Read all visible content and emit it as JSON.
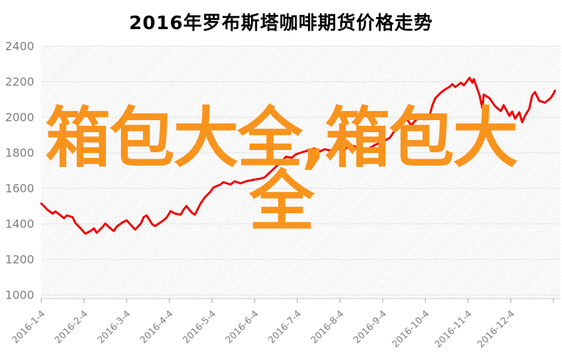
{
  "page": {
    "background": "#ffffff"
  },
  "chart": {
    "title": "2016年罗布斯塔咖啡期货价格走势",
    "title_color": "#000000",
    "watermark": {
      "line1": "箱包大全,箱包大",
      "line2": "全",
      "color": "#F8941D"
    },
    "line_color": "#EE0000",
    "line_width": 3,
    "grid_color": "#E2E2E2",
    "hatch_color": "#EBEBEB",
    "axis_label_color": "#7E7E7E",
    "axis_line_color": "#C9C9C9",
    "tick_color": "#9E9E9E"
  },
  "chart_data": {
    "type": "line",
    "title": "2016年罗布斯塔咖啡期货价格走势",
    "series_name": "罗布斯塔咖啡期货价格",
    "legend": false,
    "grid": "horizontal",
    "ylim": [
      1000,
      2400
    ],
    "y_ticks": [
      2400,
      2200,
      2000,
      1800,
      1600,
      1400,
      1200,
      1000
    ],
    "x_tick_labels": [
      "2016-1-4",
      "2016-2-4",
      "2016-3-4",
      "2016-4-4",
      "2016-5-4",
      "2016-6-4",
      "2016-7-4",
      "2016-8-4",
      "2016-9-4",
      "2016-10-4",
      "2016-11-4",
      "2016-12-4"
    ],
    "x_start_date": "2016-01-04",
    "points": [
      [
        "2016-01-04",
        1515
      ],
      [
        "2016-01-06",
        1500
      ],
      [
        "2016-01-08",
        1482
      ],
      [
        "2016-01-12",
        1458
      ],
      [
        "2016-01-14",
        1470
      ],
      [
        "2016-01-18",
        1445
      ],
      [
        "2016-01-20",
        1432
      ],
      [
        "2016-01-22",
        1448
      ],
      [
        "2016-01-26",
        1438
      ],
      [
        "2016-01-28",
        1405
      ],
      [
        "2016-02-01",
        1372
      ],
      [
        "2016-02-04",
        1345
      ],
      [
        "2016-02-08",
        1362
      ],
      [
        "2016-02-10",
        1375
      ],
      [
        "2016-02-12",
        1350
      ],
      [
        "2016-02-16",
        1382
      ],
      [
        "2016-02-18",
        1402
      ],
      [
        "2016-02-22",
        1372
      ],
      [
        "2016-02-24",
        1360
      ],
      [
        "2016-02-26",
        1385
      ],
      [
        "2016-03-01",
        1408
      ],
      [
        "2016-03-04",
        1420
      ],
      [
        "2016-03-08",
        1385
      ],
      [
        "2016-03-10",
        1368
      ],
      [
        "2016-03-14",
        1402
      ],
      [
        "2016-03-16",
        1438
      ],
      [
        "2016-03-18",
        1448
      ],
      [
        "2016-03-22",
        1398
      ],
      [
        "2016-03-24",
        1388
      ],
      [
        "2016-03-29",
        1415
      ],
      [
        "2016-04-01",
        1435
      ],
      [
        "2016-04-04",
        1472
      ],
      [
        "2016-04-07",
        1458
      ],
      [
        "2016-04-11",
        1452
      ],
      [
        "2016-04-13",
        1480
      ],
      [
        "2016-04-15",
        1500
      ],
      [
        "2016-04-19",
        1462
      ],
      [
        "2016-04-21",
        1452
      ],
      [
        "2016-04-25",
        1515
      ],
      [
        "2016-04-28",
        1550
      ],
      [
        "2016-05-02",
        1582
      ],
      [
        "2016-05-04",
        1605
      ],
      [
        "2016-05-09",
        1622
      ],
      [
        "2016-05-11",
        1635
      ],
      [
        "2016-05-16",
        1622
      ],
      [
        "2016-05-19",
        1640
      ],
      [
        "2016-05-23",
        1628
      ],
      [
        "2016-05-27",
        1640
      ],
      [
        "2016-06-01",
        1648
      ],
      [
        "2016-06-06",
        1655
      ],
      [
        "2016-06-09",
        1662
      ],
      [
        "2016-06-13",
        1692
      ],
      [
        "2016-06-16",
        1715
      ],
      [
        "2016-06-21",
        1752
      ],
      [
        "2016-06-24",
        1778
      ],
      [
        "2016-06-28",
        1772
      ],
      [
        "2016-07-01",
        1792
      ],
      [
        "2016-07-06",
        1805
      ],
      [
        "2016-07-11",
        1818
      ],
      [
        "2016-07-14",
        1825
      ],
      [
        "2016-07-18",
        1808
      ],
      [
        "2016-07-21",
        1820
      ],
      [
        "2016-07-26",
        1812
      ],
      [
        "2016-07-29",
        1825
      ],
      [
        "2016-08-03",
        1820
      ],
      [
        "2016-08-08",
        1833
      ],
      [
        "2016-08-11",
        1838
      ],
      [
        "2016-08-15",
        1815
      ],
      [
        "2016-08-18",
        1812
      ],
      [
        "2016-08-23",
        1833
      ],
      [
        "2016-08-26",
        1846
      ],
      [
        "2016-08-31",
        1862
      ],
      [
        "2016-09-05",
        1885
      ],
      [
        "2016-09-08",
        1920
      ],
      [
        "2016-09-12",
        1945
      ],
      [
        "2016-09-14",
        1978
      ],
      [
        "2016-09-16",
        2000
      ],
      [
        "2016-09-20",
        1955
      ],
      [
        "2016-09-23",
        1982
      ],
      [
        "2016-09-26",
        2002
      ],
      [
        "2016-09-29",
        1988
      ],
      [
        "2016-10-03",
        2012
      ],
      [
        "2016-10-05",
        2070
      ],
      [
        "2016-10-07",
        2108
      ],
      [
        "2016-10-11",
        2140
      ],
      [
        "2016-10-13",
        2152
      ],
      [
        "2016-10-17",
        2172
      ],
      [
        "2016-10-19",
        2186
      ],
      [
        "2016-10-21",
        2170
      ],
      [
        "2016-10-25",
        2195
      ],
      [
        "2016-10-27",
        2180
      ],
      [
        "2016-10-31",
        2222
      ],
      [
        "2016-11-02",
        2195
      ],
      [
        "2016-11-03",
        2215
      ],
      [
        "2016-11-07",
        2125
      ],
      [
        "2016-11-09",
        2052
      ],
      [
        "2016-11-10",
        2128
      ],
      [
        "2016-11-14",
        2108
      ],
      [
        "2016-11-16",
        2085
      ],
      [
        "2016-11-18",
        2062
      ],
      [
        "2016-11-22",
        2035
      ],
      [
        "2016-11-24",
        2068
      ],
      [
        "2016-11-28",
        2008
      ],
      [
        "2016-11-30",
        2032
      ],
      [
        "2016-12-02",
        1992
      ],
      [
        "2016-12-05",
        2028
      ],
      [
        "2016-12-07",
        1972
      ],
      [
        "2016-12-09",
        2008
      ],
      [
        "2016-12-12",
        2048
      ],
      [
        "2016-12-14",
        2122
      ],
      [
        "2016-12-16",
        2142
      ],
      [
        "2016-12-19",
        2092
      ],
      [
        "2016-12-21",
        2088
      ],
      [
        "2016-12-23",
        2082
      ],
      [
        "2016-12-27",
        2108
      ],
      [
        "2016-12-29",
        2132
      ],
      [
        "2016-12-30",
        2150
      ]
    ]
  }
}
